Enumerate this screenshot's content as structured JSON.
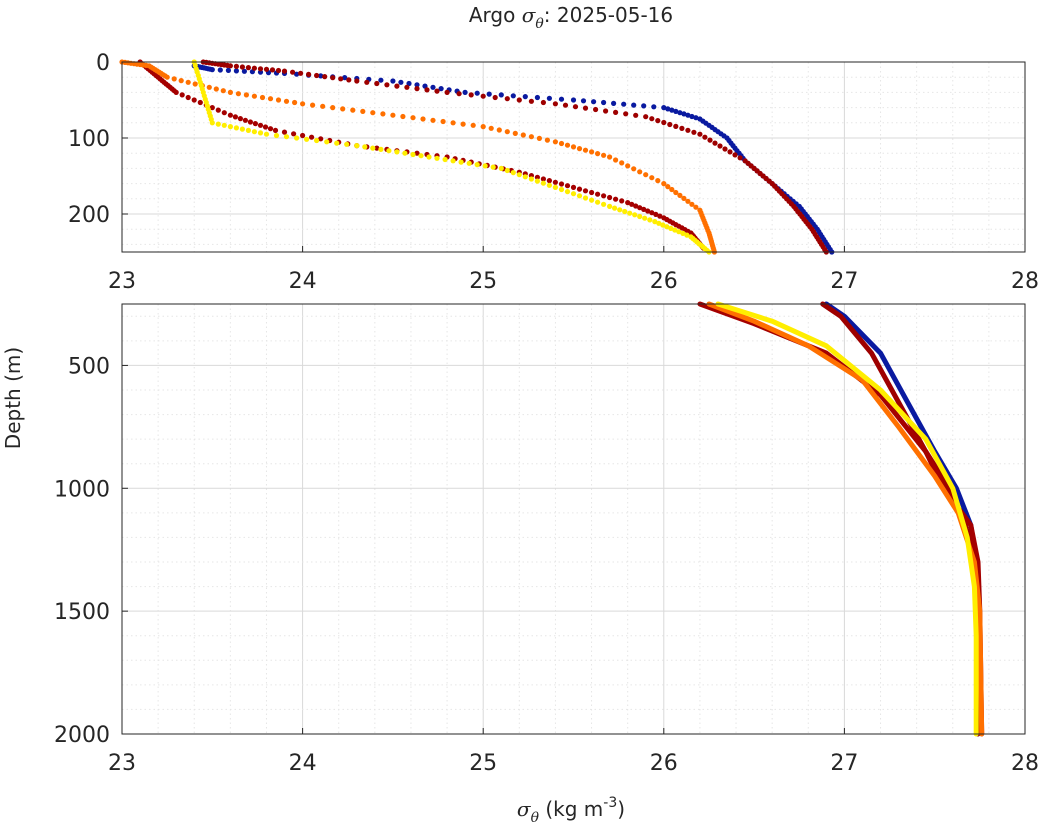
{
  "chart_data": {
    "type": "scatter",
    "title_prefix": "Argo ",
    "title_symbol": "σ",
    "title_subscript": "θ",
    "title_suffix": ": 2025-05-16",
    "xlabel_symbol": "σ",
    "xlabel_subscript": "θ",
    "xlabel_units": " (kg m",
    "xlabel_exponent": "-3",
    "xlabel_close": ")",
    "ylabel": "Depth (m)",
    "xlim": [
      23,
      28
    ],
    "x_ticks": [
      "23",
      "24",
      "25",
      "26",
      "27",
      "28"
    ],
    "panels": [
      {
        "name": "upper",
        "ylim": [
          0,
          250
        ],
        "y_ticks": [
          0,
          100,
          200
        ],
        "y_tick_labels": [
          "0",
          "100",
          "200"
        ]
      },
      {
        "name": "lower",
        "ylim": [
          250,
          2000
        ],
        "y_ticks": [
          500,
          1000,
          1500,
          2000
        ],
        "y_tick_labels": [
          "500",
          "1000",
          "1500",
          "2000"
        ]
      }
    ],
    "series": [
      {
        "name": "profile-navy",
        "color": "#0a1aa0",
        "upper": [
          [
            23.4,
            5
          ],
          [
            23.5,
            10
          ],
          [
            23.9,
            15
          ],
          [
            24.5,
            25
          ],
          [
            24.9,
            40
          ],
          [
            25.5,
            50
          ],
          [
            26.0,
            60
          ],
          [
            26.2,
            75
          ],
          [
            26.35,
            100
          ],
          [
            26.45,
            130
          ],
          [
            26.6,
            160
          ],
          [
            26.75,
            190
          ],
          [
            26.85,
            220
          ],
          [
            26.93,
            250
          ]
        ],
        "lower": [
          [
            26.9,
            250
          ],
          [
            27.0,
            300
          ],
          [
            27.2,
            450
          ],
          [
            27.35,
            650
          ],
          [
            27.5,
            850
          ],
          [
            27.62,
            1000
          ],
          [
            27.7,
            1150
          ],
          [
            27.73,
            1300
          ],
          [
            27.74,
            1500
          ],
          [
            27.74,
            2000
          ]
        ]
      },
      {
        "name": "profile-darkred-a",
        "color": "#9e0000",
        "upper": [
          [
            23.45,
            0
          ],
          [
            23.6,
            5
          ],
          [
            23.9,
            12
          ],
          [
            24.3,
            25
          ],
          [
            24.8,
            40
          ],
          [
            25.4,
            55
          ],
          [
            25.9,
            72
          ],
          [
            26.2,
            95
          ],
          [
            26.45,
            130
          ],
          [
            26.6,
            160
          ],
          [
            26.72,
            190
          ],
          [
            26.82,
            220
          ],
          [
            26.9,
            250
          ]
        ],
        "lower": [
          [
            26.88,
            250
          ],
          [
            26.98,
            300
          ],
          [
            27.15,
            450
          ],
          [
            27.3,
            650
          ],
          [
            27.45,
            850
          ],
          [
            27.58,
            1000
          ],
          [
            27.67,
            1150
          ],
          [
            27.72,
            1300
          ],
          [
            27.74,
            1500
          ],
          [
            27.74,
            2000
          ]
        ]
      },
      {
        "name": "profile-darkred-b",
        "color": "#a50000",
        "upper": [
          [
            23.1,
            0
          ],
          [
            23.2,
            20
          ],
          [
            23.3,
            40
          ],
          [
            23.6,
            70
          ],
          [
            23.85,
            90
          ],
          [
            24.3,
            110
          ],
          [
            24.8,
            125
          ],
          [
            25.2,
            145
          ],
          [
            25.5,
            165
          ],
          [
            25.8,
            185
          ],
          [
            26.0,
            205
          ],
          [
            26.15,
            225
          ],
          [
            26.22,
            245
          ]
        ],
        "lower": [
          [
            26.2,
            250
          ],
          [
            26.5,
            330
          ],
          [
            26.9,
            450
          ],
          [
            27.2,
            620
          ],
          [
            27.45,
            850
          ],
          [
            27.55,
            1000
          ],
          [
            27.7,
            1150
          ],
          [
            27.74,
            1300
          ],
          [
            27.75,
            1500
          ],
          [
            27.76,
            2000
          ]
        ]
      },
      {
        "name": "profile-orange",
        "color": "#ff7000",
        "upper": [
          [
            23.0,
            0
          ],
          [
            23.15,
            5
          ],
          [
            23.25,
            20
          ],
          [
            23.6,
            40
          ],
          [
            24.0,
            55
          ],
          [
            24.5,
            70
          ],
          [
            25.0,
            85
          ],
          [
            25.4,
            105
          ],
          [
            25.7,
            125
          ],
          [
            26.0,
            160
          ],
          [
            26.2,
            195
          ],
          [
            26.25,
            225
          ],
          [
            26.28,
            250
          ]
        ],
        "lower": [
          [
            26.25,
            250
          ],
          [
            26.5,
            320
          ],
          [
            26.8,
            420
          ],
          [
            27.1,
            560
          ],
          [
            27.3,
            750
          ],
          [
            27.5,
            950
          ],
          [
            27.63,
            1100
          ],
          [
            27.72,
            1300
          ],
          [
            27.75,
            1500
          ],
          [
            27.76,
            2000
          ]
        ]
      },
      {
        "name": "profile-yellow",
        "color": "#ffee00",
        "upper": [
          [
            23.4,
            0
          ],
          [
            23.45,
            40
          ],
          [
            23.5,
            80
          ],
          [
            23.8,
            95
          ],
          [
            24.3,
            110
          ],
          [
            24.7,
            125
          ],
          [
            25.1,
            140
          ],
          [
            25.4,
            165
          ],
          [
            25.7,
            190
          ],
          [
            25.95,
            210
          ],
          [
            26.15,
            230
          ],
          [
            26.25,
            250
          ]
        ],
        "lower": [
          [
            26.3,
            250
          ],
          [
            26.6,
            320
          ],
          [
            26.9,
            420
          ],
          [
            27.2,
            600
          ],
          [
            27.45,
            800
          ],
          [
            27.6,
            1000
          ],
          [
            27.68,
            1200
          ],
          [
            27.72,
            1400
          ],
          [
            27.73,
            1600
          ],
          [
            27.73,
            2000
          ]
        ]
      }
    ]
  }
}
